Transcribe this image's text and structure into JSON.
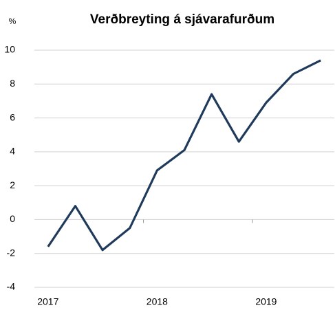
{
  "chart_data": {
    "type": "line",
    "title": "Verðbreyting á sjávarafurðum",
    "unit": "%",
    "categories": [
      "2017",
      null,
      null,
      null,
      "2018",
      null,
      null,
      null,
      "2019",
      null,
      null
    ],
    "series": [
      {
        "color": "#1f3a5a",
        "values": [
          -1.6,
          0.8,
          -1.8,
          -0.5,
          2.9,
          4.1,
          7.4,
          4.6,
          6.9,
          8.6,
          9.4
        ]
      }
    ],
    "ylim": [
      -4,
      10
    ],
    "yticks": [
      -4,
      -2,
      0,
      2,
      4,
      6,
      8,
      10
    ],
    "grid": true
  }
}
